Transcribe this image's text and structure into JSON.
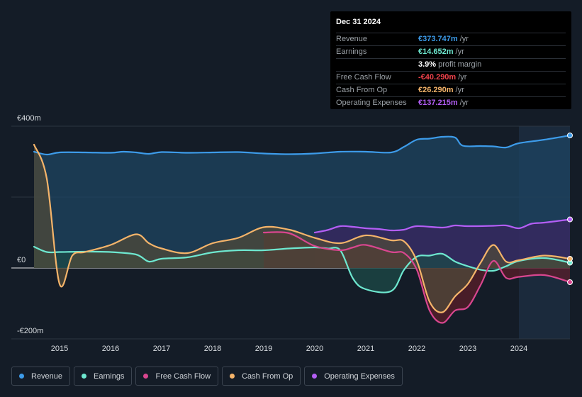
{
  "tooltip": {
    "date": "Dec 31 2024",
    "rows": [
      {
        "label": "Revenue",
        "value": "€373.747m",
        "unit": "/yr",
        "color": "#3d9be9"
      },
      {
        "label": "Earnings",
        "value": "€14.652m",
        "unit": "/yr",
        "color": "#6ee8d0"
      },
      {
        "label": "",
        "value": "3.9%",
        "unit": "profit margin",
        "color": "#ffffff"
      },
      {
        "label": "Free Cash Flow",
        "value": "-€40.290m",
        "unit": "/yr",
        "color": "#f0424b"
      },
      {
        "label": "Cash From Op",
        "value": "€26.290m",
        "unit": "/yr",
        "color": "#f5b46a"
      },
      {
        "label": "Operating Expenses",
        "value": "€137.215m",
        "unit": "/yr",
        "color": "#b35ef5"
      }
    ]
  },
  "legend": [
    {
      "label": "Revenue",
      "color": "#3d9be9"
    },
    {
      "label": "Earnings",
      "color": "#6ee8d0"
    },
    {
      "label": "Free Cash Flow",
      "color": "#d9468f"
    },
    {
      "label": "Cash From Op",
      "color": "#f5b46a"
    },
    {
      "label": "Operating Expenses",
      "color": "#b35ef5"
    }
  ],
  "chart_data": {
    "type": "area",
    "y_tick_labels": [
      "€400m",
      "€0",
      "-€200m"
    ],
    "y_ticks": [
      400,
      0,
      -200
    ],
    "ylim": [
      -200,
      400
    ],
    "xlim": [
      2014.5,
      2025.0
    ],
    "x_tick_labels": [
      "2015",
      "2016",
      "2017",
      "2018",
      "2019",
      "2020",
      "2021",
      "2022",
      "2023",
      "2024"
    ],
    "x_ticks": [
      2015,
      2016,
      2017,
      2018,
      2019,
      2020,
      2021,
      2022,
      2023,
      2024
    ],
    "highlight_start": 2024.0,
    "series": [
      {
        "name": "Revenue",
        "color": "#3d9be9",
        "fill": "#1d4462",
        "points": [
          [
            2014.5,
            328
          ],
          [
            2014.75,
            320
          ],
          [
            2015.0,
            326
          ],
          [
            2015.5,
            326
          ],
          [
            2016.0,
            325
          ],
          [
            2016.25,
            328
          ],
          [
            2016.5,
            326
          ],
          [
            2016.75,
            322
          ],
          [
            2017.0,
            327
          ],
          [
            2017.5,
            325
          ],
          [
            2018.0,
            326
          ],
          [
            2018.5,
            327
          ],
          [
            2019.0,
            323
          ],
          [
            2019.5,
            321
          ],
          [
            2020.0,
            323
          ],
          [
            2020.5,
            328
          ],
          [
            2021.0,
            328
          ],
          [
            2021.5,
            326
          ],
          [
            2021.75,
            342
          ],
          [
            2022.0,
            362
          ],
          [
            2022.25,
            365
          ],
          [
            2022.5,
            370
          ],
          [
            2022.75,
            368
          ],
          [
            2022.9,
            345
          ],
          [
            2023.25,
            344
          ],
          [
            2023.5,
            343
          ],
          [
            2023.75,
            340
          ],
          [
            2024.0,
            352
          ],
          [
            2024.5,
            362
          ],
          [
            2025.0,
            374
          ]
        ]
      },
      {
        "name": "Operating Expenses",
        "color": "#b35ef5",
        "fill": "#3a2560",
        "points": [
          [
            2020.0,
            100
          ],
          [
            2020.25,
            107
          ],
          [
            2020.5,
            118
          ],
          [
            2020.75,
            116
          ],
          [
            2021.0,
            112
          ],
          [
            2021.25,
            110
          ],
          [
            2021.5,
            106
          ],
          [
            2021.75,
            108
          ],
          [
            2022.0,
            118
          ],
          [
            2022.5,
            114
          ],
          [
            2022.75,
            120
          ],
          [
            2023.0,
            118
          ],
          [
            2023.5,
            119
          ],
          [
            2023.75,
            120
          ],
          [
            2024.0,
            112
          ],
          [
            2024.25,
            125
          ],
          [
            2024.5,
            128
          ],
          [
            2025.0,
            137
          ]
        ]
      },
      {
        "name": "Earnings",
        "color": "#6ee8d0",
        "fill": "#1c4a48",
        "points": [
          [
            2014.5,
            60
          ],
          [
            2014.75,
            45
          ],
          [
            2015.0,
            45
          ],
          [
            2015.5,
            46
          ],
          [
            2016.0,
            45
          ],
          [
            2016.5,
            38
          ],
          [
            2016.75,
            18
          ],
          [
            2017.0,
            26
          ],
          [
            2017.5,
            30
          ],
          [
            2018.0,
            44
          ],
          [
            2018.5,
            50
          ],
          [
            2019.0,
            50
          ],
          [
            2019.5,
            55
          ],
          [
            2020.0,
            58
          ],
          [
            2020.25,
            55
          ],
          [
            2020.5,
            50
          ],
          [
            2020.75,
            -30
          ],
          [
            2021.0,
            -60
          ],
          [
            2021.5,
            -65
          ],
          [
            2021.75,
            -5
          ],
          [
            2022.0,
            32
          ],
          [
            2022.25,
            35
          ],
          [
            2022.5,
            40
          ],
          [
            2022.75,
            18
          ],
          [
            2023.0,
            5
          ],
          [
            2023.25,
            -5
          ],
          [
            2023.5,
            -8
          ],
          [
            2023.75,
            5
          ],
          [
            2024.0,
            20
          ],
          [
            2024.5,
            28
          ],
          [
            2025.0,
            15
          ]
        ]
      },
      {
        "name": "Free Cash Flow",
        "color": "#d9468f",
        "fill": "#5a1d2a",
        "points": [
          [
            2019.0,
            100
          ],
          [
            2019.5,
            98
          ],
          [
            2020.0,
            62
          ],
          [
            2020.5,
            50
          ],
          [
            2020.75,
            58
          ],
          [
            2021.0,
            65
          ],
          [
            2021.5,
            45
          ],
          [
            2021.75,
            42
          ],
          [
            2022.0,
            -5
          ],
          [
            2022.25,
            -120
          ],
          [
            2022.5,
            -155
          ],
          [
            2022.75,
            -120
          ],
          [
            2023.0,
            -110
          ],
          [
            2023.25,
            -48
          ],
          [
            2023.5,
            20
          ],
          [
            2023.75,
            -28
          ],
          [
            2024.0,
            -25
          ],
          [
            2024.5,
            -20
          ],
          [
            2025.0,
            -40
          ]
        ]
      },
      {
        "name": "Cash From Op",
        "color": "#f5b46a",
        "fill": "#4f4a3a",
        "points": [
          [
            2014.5,
            348
          ],
          [
            2014.75,
            252
          ],
          [
            2015.0,
            -45
          ],
          [
            2015.25,
            35
          ],
          [
            2015.5,
            45
          ],
          [
            2016.0,
            65
          ],
          [
            2016.5,
            95
          ],
          [
            2016.75,
            70
          ],
          [
            2017.0,
            55
          ],
          [
            2017.5,
            42
          ],
          [
            2018.0,
            70
          ],
          [
            2018.5,
            85
          ],
          [
            2019.0,
            115
          ],
          [
            2019.5,
            108
          ],
          [
            2020.0,
            85
          ],
          [
            2020.5,
            70
          ],
          [
            2021.0,
            92
          ],
          [
            2021.5,
            78
          ],
          [
            2021.75,
            75
          ],
          [
            2022.0,
            20
          ],
          [
            2022.25,
            -95
          ],
          [
            2022.5,
            -125
          ],
          [
            2022.75,
            -80
          ],
          [
            2023.0,
            -45
          ],
          [
            2023.25,
            15
          ],
          [
            2023.5,
            65
          ],
          [
            2023.75,
            18
          ],
          [
            2024.0,
            22
          ],
          [
            2024.5,
            35
          ],
          [
            2025.0,
            26
          ]
        ]
      }
    ]
  }
}
